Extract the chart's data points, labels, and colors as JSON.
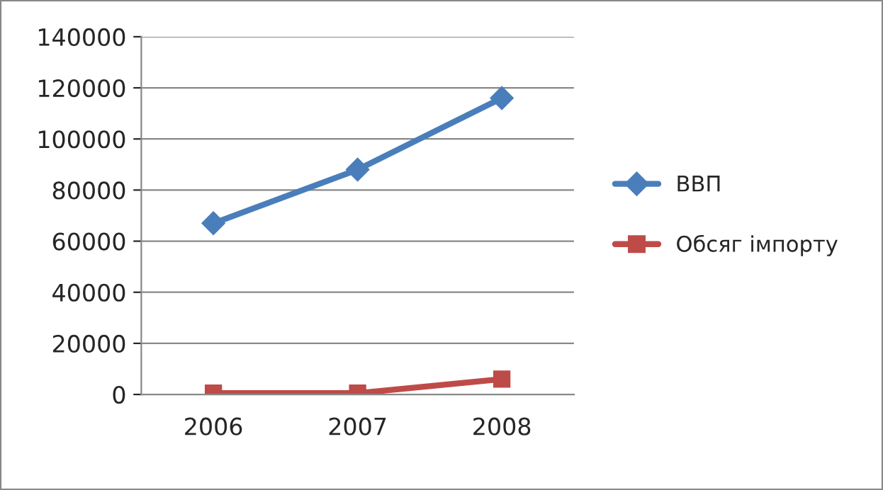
{
  "chart_data": {
    "type": "line",
    "categories": [
      "2006",
      "2007",
      "2008"
    ],
    "series": [
      {
        "name": "ВВП",
        "color": "#4a7ebb",
        "values": [
          67000,
          88000,
          116000
        ],
        "marker": "diamond"
      },
      {
        "name": "Обсяг імпорту",
        "color": "#be4b48",
        "values": [
          500,
          500,
          6000
        ],
        "marker": "square"
      }
    ],
    "ylim": [
      0,
      140000
    ],
    "yticks": [
      0,
      20000,
      40000,
      60000,
      80000,
      100000,
      120000,
      140000
    ],
    "grid": "y",
    "legend": "right"
  }
}
